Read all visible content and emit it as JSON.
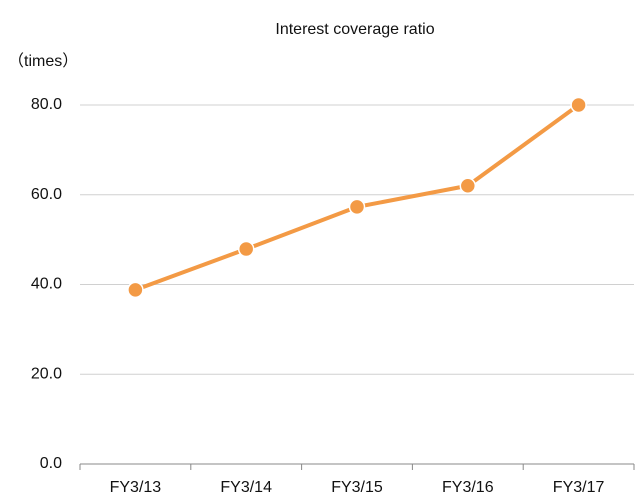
{
  "chart_data": {
    "type": "line",
    "title": "Interest coverage ratio",
    "y_label": "（times）",
    "categories": [
      "FY3/13",
      "FY3/14",
      "FY3/15",
      "FY3/16",
      "FY3/17"
    ],
    "series": [
      {
        "name": "Interest coverage ratio",
        "color": "#f39a45",
        "values": [
          38.8,
          47.9,
          57.3,
          62.0,
          80.0
        ]
      }
    ],
    "ylim": [
      0,
      80
    ],
    "yticks": [
      {
        "value": 0,
        "label": "0.0"
      },
      {
        "value": 20,
        "label": "20.0"
      },
      {
        "value": 40,
        "label": "40.0"
      },
      {
        "value": 60,
        "label": "60.0"
      },
      {
        "value": 80,
        "label": "80.0"
      }
    ],
    "grid": true
  }
}
